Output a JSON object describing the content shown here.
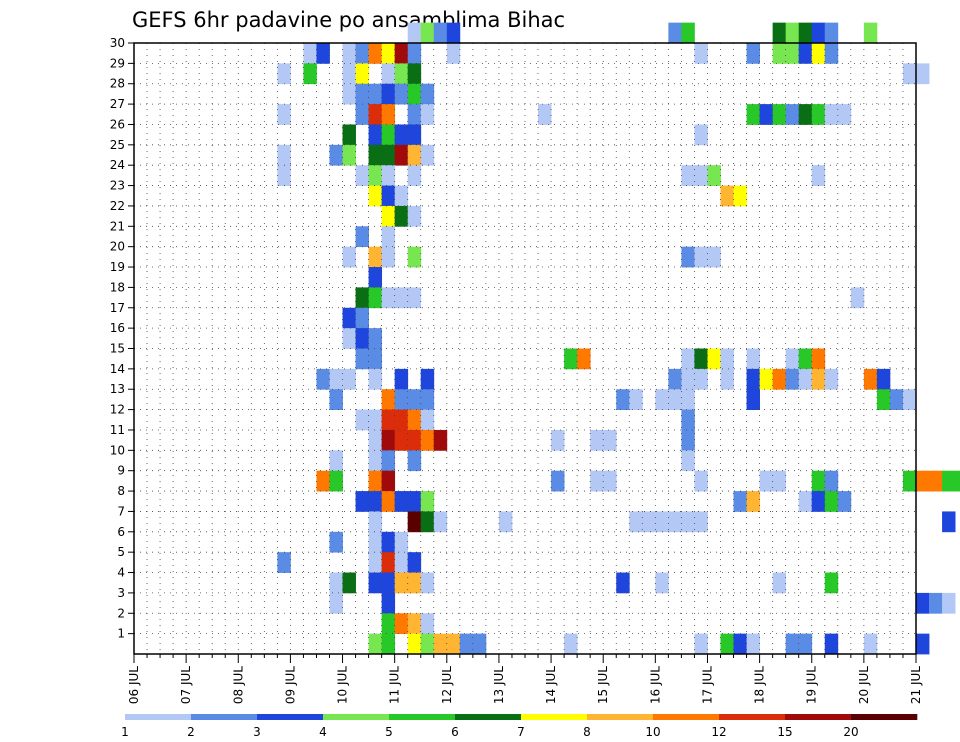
{
  "chart_data": {
    "type": "heatmap",
    "title": "GEFS 6hr padavine po ansamblima Bihac",
    "x_tick_labels": [
      "06 JUL",
      "07 JUL",
      "08 JUL",
      "09 JUL",
      "10 JUL",
      "11 JUL",
      "12 JUL",
      "13 JUL",
      "14 JUL",
      "15 JUL",
      "16 JUL",
      "17 JUL",
      "18 JUL",
      "19 JUL",
      "20 JUL",
      "21 JUL"
    ],
    "y_tick_labels": [
      "1",
      "2",
      "3",
      "4",
      "5",
      "6",
      "7",
      "8",
      "9",
      "10",
      "11",
      "12",
      "13",
      "14",
      "15",
      "16",
      "17",
      "18",
      "19",
      "20",
      "21",
      "22",
      "23",
      "24",
      "25",
      "26",
      "27",
      "28",
      "29",
      "30"
    ],
    "x_range": [
      "06 JUL",
      "21 JUL"
    ],
    "y_range": [
      0,
      30
    ],
    "grid": true,
    "color_levels": [
      1,
      2,
      3,
      4,
      5,
      6,
      7,
      8,
      10,
      12,
      15,
      20
    ],
    "color_level_labels": [
      "1",
      "2",
      "3",
      "4",
      "5",
      "6",
      "7",
      "8",
      "10",
      "12",
      "15",
      "20"
    ],
    "colors": [
      "#b4c8f5",
      "#5a8ce6",
      "#1e46dc",
      "#78e650",
      "#28c828",
      "#0a6e14",
      "#ffff00",
      "#ffb432",
      "#ff7800",
      "#dc2d0a",
      "#a00a0a",
      "#5a0000"
    ],
    "unit_note": "column index = 6-hour step from 06 JUL 00z; row = ensemble member; value = level index into colors",
    "cells": [
      [
        30,
        21,
        1
      ],
      [
        30,
        22,
        4
      ],
      [
        30,
        23,
        2
      ],
      [
        30,
        24,
        3
      ],
      [
        30,
        41,
        2
      ],
      [
        30,
        42,
        5
      ],
      [
        30,
        49,
        6
      ],
      [
        30,
        50,
        4
      ],
      [
        30,
        51,
        6
      ],
      [
        30,
        52,
        3
      ],
      [
        30,
        53,
        2
      ],
      [
        30,
        56,
        4
      ],
      [
        29,
        13,
        1
      ],
      [
        29,
        14,
        3
      ],
      [
        29,
        16,
        1
      ],
      [
        29,
        17,
        2
      ],
      [
        29,
        18,
        9
      ],
      [
        29,
        19,
        7
      ],
      [
        29,
        20,
        11
      ],
      [
        29,
        21,
        2
      ],
      [
        29,
        24,
        1
      ],
      [
        29,
        43,
        1
      ],
      [
        29,
        47,
        2
      ],
      [
        29,
        49,
        4
      ],
      [
        29,
        50,
        4
      ],
      [
        29,
        51,
        3
      ],
      [
        29,
        52,
        7
      ],
      [
        29,
        53,
        2
      ],
      [
        28,
        11,
        1
      ],
      [
        28,
        13,
        5
      ],
      [
        28,
        16,
        1
      ],
      [
        28,
        17,
        7
      ],
      [
        28,
        19,
        1
      ],
      [
        28,
        20,
        4
      ],
      [
        28,
        21,
        6
      ],
      [
        28,
        59,
        1
      ],
      [
        28,
        60,
        1
      ],
      [
        27,
        16,
        1
      ],
      [
        27,
        17,
        2
      ],
      [
        27,
        18,
        2
      ],
      [
        27,
        19,
        3
      ],
      [
        27,
        20,
        2
      ],
      [
        27,
        21,
        5
      ],
      [
        27,
        22,
        2
      ],
      [
        26,
        11,
        1
      ],
      [
        26,
        17,
        2
      ],
      [
        26,
        18,
        10
      ],
      [
        26,
        19,
        9
      ],
      [
        26,
        21,
        2
      ],
      [
        26,
        22,
        1
      ],
      [
        26,
        31,
        1
      ],
      [
        26,
        47,
        5
      ],
      [
        26,
        48,
        3
      ],
      [
        26,
        49,
        5
      ],
      [
        26,
        50,
        2
      ],
      [
        26,
        51,
        6
      ],
      [
        26,
        52,
        5
      ],
      [
        26,
        53,
        1
      ],
      [
        26,
        54,
        1
      ],
      [
        25,
        16,
        6
      ],
      [
        25,
        18,
        3
      ],
      [
        25,
        19,
        5
      ],
      [
        25,
        20,
        3
      ],
      [
        25,
        21,
        3
      ],
      [
        25,
        43,
        1
      ],
      [
        24,
        11,
        1
      ],
      [
        24,
        15,
        2
      ],
      [
        24,
        16,
        4
      ],
      [
        24,
        18,
        6
      ],
      [
        24,
        19,
        6
      ],
      [
        24,
        20,
        11
      ],
      [
        24,
        21,
        8
      ],
      [
        24,
        22,
        1
      ],
      [
        23,
        11,
        1
      ],
      [
        23,
        17,
        1
      ],
      [
        23,
        18,
        4
      ],
      [
        23,
        19,
        1
      ],
      [
        23,
        21,
        1
      ],
      [
        23,
        42,
        1
      ],
      [
        23,
        43,
        1
      ],
      [
        23,
        44,
        4
      ],
      [
        23,
        52,
        1
      ],
      [
        23,
        65,
        1
      ],
      [
        23,
        66,
        2
      ],
      [
        22,
        18,
        7
      ],
      [
        22,
        19,
        3
      ],
      [
        22,
        20,
        1
      ],
      [
        22,
        45,
        8
      ],
      [
        22,
        46,
        7
      ],
      [
        22,
        66,
        1
      ],
      [
        21,
        19,
        7
      ],
      [
        21,
        20,
        6
      ],
      [
        21,
        21,
        1
      ],
      [
        20,
        17,
        2
      ],
      [
        20,
        19,
        1
      ],
      [
        19,
        16,
        1
      ],
      [
        19,
        18,
        8
      ],
      [
        19,
        19,
        1
      ],
      [
        19,
        21,
        4
      ],
      [
        19,
        42,
        2
      ],
      [
        19,
        43,
        1
      ],
      [
        19,
        44,
        1
      ],
      [
        18,
        18,
        3
      ],
      [
        17,
        17,
        6
      ],
      [
        17,
        18,
        5
      ],
      [
        17,
        19,
        1
      ],
      [
        17,
        20,
        1
      ],
      [
        17,
        21,
        1
      ],
      [
        17,
        55,
        1
      ],
      [
        16,
        16,
        3
      ],
      [
        16,
        17,
        2
      ],
      [
        15,
        16,
        1
      ],
      [
        15,
        17,
        3
      ],
      [
        15,
        18,
        2
      ],
      [
        14,
        17,
        2
      ],
      [
        14,
        18,
        2
      ],
      [
        14,
        33,
        5
      ],
      [
        14,
        34,
        9
      ],
      [
        14,
        42,
        1
      ],
      [
        14,
        43,
        6
      ],
      [
        14,
        44,
        7
      ],
      [
        14,
        45,
        1
      ],
      [
        14,
        47,
        1
      ],
      [
        14,
        50,
        1
      ],
      [
        14,
        51,
        5
      ],
      [
        14,
        52,
        9
      ],
      [
        13,
        14,
        2
      ],
      [
        13,
        15,
        1
      ],
      [
        13,
        16,
        1
      ],
      [
        13,
        18,
        1
      ],
      [
        13,
        20,
        3
      ],
      [
        13,
        22,
        3
      ],
      [
        13,
        41,
        2
      ],
      [
        13,
        42,
        1
      ],
      [
        13,
        43,
        1
      ],
      [
        13,
        45,
        1
      ],
      [
        13,
        47,
        3
      ],
      [
        13,
        48,
        7
      ],
      [
        13,
        49,
        9
      ],
      [
        13,
        50,
        2
      ],
      [
        13,
        51,
        1
      ],
      [
        13,
        52,
        8
      ],
      [
        13,
        53,
        1
      ],
      [
        13,
        56,
        9
      ],
      [
        13,
        57,
        3
      ],
      [
        13,
        69,
        2
      ],
      [
        12,
        15,
        2
      ],
      [
        12,
        19,
        9
      ],
      [
        12,
        20,
        2
      ],
      [
        12,
        21,
        2
      ],
      [
        12,
        22,
        2
      ],
      [
        12,
        37,
        2
      ],
      [
        12,
        38,
        1
      ],
      [
        12,
        40,
        1
      ],
      [
        12,
        41,
        1
      ],
      [
        12,
        42,
        1
      ],
      [
        12,
        47,
        3
      ],
      [
        12,
        57,
        5
      ],
      [
        12,
        58,
        2
      ],
      [
        12,
        59,
        1
      ],
      [
        11,
        17,
        1
      ],
      [
        11,
        18,
        1
      ],
      [
        11,
        19,
        10
      ],
      [
        11,
        20,
        10
      ],
      [
        11,
        21,
        9
      ],
      [
        11,
        22,
        1
      ],
      [
        11,
        42,
        2
      ],
      [
        10,
        18,
        1
      ],
      [
        10,
        19,
        11
      ],
      [
        10,
        20,
        10
      ],
      [
        10,
        21,
        10
      ],
      [
        10,
        22,
        9
      ],
      [
        10,
        23,
        11
      ],
      [
        10,
        32,
        1
      ],
      [
        10,
        35,
        1
      ],
      [
        10,
        36,
        1
      ],
      [
        10,
        42,
        2
      ],
      [
        9,
        15,
        1
      ],
      [
        9,
        18,
        1
      ],
      [
        9,
        19,
        2
      ],
      [
        9,
        21,
        2
      ],
      [
        9,
        42,
        1
      ],
      [
        9,
        69,
        1
      ],
      [
        8,
        14,
        9
      ],
      [
        8,
        15,
        5
      ],
      [
        8,
        18,
        9
      ],
      [
        8,
        19,
        11
      ],
      [
        8,
        32,
        2
      ],
      [
        8,
        35,
        1
      ],
      [
        8,
        36,
        1
      ],
      [
        8,
        43,
        1
      ],
      [
        8,
        48,
        1
      ],
      [
        8,
        49,
        1
      ],
      [
        8,
        52,
        5
      ],
      [
        8,
        53,
        2
      ],
      [
        8,
        59,
        5
      ],
      [
        8,
        60,
        9
      ],
      [
        8,
        61,
        9
      ],
      [
        8,
        62,
        5
      ],
      [
        8,
        63,
        5
      ],
      [
        7,
        17,
        3
      ],
      [
        7,
        18,
        3
      ],
      [
        7,
        19,
        9
      ],
      [
        7,
        20,
        3
      ],
      [
        7,
        21,
        3
      ],
      [
        7,
        22,
        4
      ],
      [
        7,
        46,
        2
      ],
      [
        7,
        47,
        8
      ],
      [
        7,
        51,
        1
      ],
      [
        7,
        52,
        3
      ],
      [
        7,
        53,
        5
      ],
      [
        7,
        54,
        2
      ],
      [
        6,
        18,
        1
      ],
      [
        6,
        21,
        12
      ],
      [
        6,
        22,
        6
      ],
      [
        6,
        23,
        1
      ],
      [
        6,
        28,
        1
      ],
      [
        6,
        38,
        1
      ],
      [
        6,
        39,
        1
      ],
      [
        6,
        40,
        1
      ],
      [
        6,
        41,
        1
      ],
      [
        6,
        42,
        1
      ],
      [
        6,
        43,
        1
      ],
      [
        6,
        62,
        3
      ],
      [
        5,
        15,
        2
      ],
      [
        5,
        18,
        1
      ],
      [
        5,
        19,
        3
      ],
      [
        5,
        20,
        1
      ],
      [
        4,
        11,
        2
      ],
      [
        4,
        18,
        1
      ],
      [
        4,
        19,
        10
      ],
      [
        4,
        20,
        1
      ],
      [
        4,
        21,
        3
      ],
      [
        4,
        66,
        2
      ],
      [
        3,
        15,
        1
      ],
      [
        3,
        16,
        6
      ],
      [
        3,
        18,
        3
      ],
      [
        3,
        19,
        3
      ],
      [
        3,
        20,
        8
      ],
      [
        3,
        21,
        8
      ],
      [
        3,
        22,
        1
      ],
      [
        3,
        37,
        3
      ],
      [
        3,
        40,
        1
      ],
      [
        3,
        49,
        1
      ],
      [
        3,
        53,
        5
      ],
      [
        3,
        69,
        6
      ],
      [
        2,
        15,
        1
      ],
      [
        2,
        19,
        3
      ],
      [
        2,
        60,
        3
      ],
      [
        2,
        61,
        2
      ],
      [
        2,
        62,
        1
      ],
      [
        2,
        64,
        5
      ],
      [
        2,
        65,
        3
      ],
      [
        2,
        69,
        9
      ],
      [
        1,
        19,
        5
      ],
      [
        1,
        20,
        9
      ],
      [
        1,
        21,
        8
      ],
      [
        1,
        22,
        1
      ],
      [
        1,
        69,
        1
      ],
      [
        0,
        18,
        4
      ],
      [
        0,
        19,
        5
      ],
      [
        0,
        21,
        7
      ],
      [
        0,
        22,
        4
      ],
      [
        0,
        23,
        8
      ],
      [
        0,
        24,
        8
      ],
      [
        0,
        25,
        2
      ],
      [
        0,
        26,
        2
      ],
      [
        0,
        33,
        1
      ],
      [
        0,
        43,
        1
      ],
      [
        0,
        45,
        5
      ],
      [
        0,
        46,
        3
      ],
      [
        0,
        47,
        1
      ],
      [
        0,
        50,
        2
      ],
      [
        0,
        51,
        2
      ],
      [
        0,
        53,
        3
      ],
      [
        0,
        56,
        1
      ],
      [
        0,
        60,
        3
      ],
      [
        0,
        64,
        1
      ],
      [
        0,
        65,
        5
      ],
      [
        0,
        66,
        1
      ],
      [
        0,
        68,
        5
      ],
      [
        0,
        69,
        1
      ]
    ]
  }
}
